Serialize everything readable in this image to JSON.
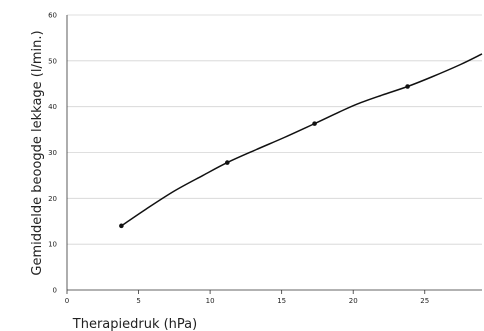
{
  "chart_data": {
    "type": "line",
    "xlabel": "Therapiedruk (hPa)",
    "ylabel": "Gemiddelde beoogde lekkage (l/min.)",
    "xlim": [
      0,
      29
    ],
    "ylim": [
      0,
      60
    ],
    "xticks": [
      0,
      5,
      10,
      15,
      20,
      25
    ],
    "yticks": [
      0,
      10,
      20,
      30,
      40,
      50,
      60
    ],
    "grid": "horizontal",
    "legend": "none",
    "series": [
      {
        "color": "#111111",
        "line": [
          {
            "x": 3.8,
            "y": 14.0
          },
          {
            "x": 5.5,
            "y": 17.6
          },
          {
            "x": 7.5,
            "y": 21.6
          },
          {
            "x": 9.5,
            "y": 25.0
          },
          {
            "x": 11.2,
            "y": 27.8
          },
          {
            "x": 13.2,
            "y": 30.6
          },
          {
            "x": 15.2,
            "y": 33.3
          },
          {
            "x": 17.3,
            "y": 36.3
          },
          {
            "x": 19.0,
            "y": 38.8
          },
          {
            "x": 20.3,
            "y": 40.6
          },
          {
            "x": 22.0,
            "y": 42.5
          },
          {
            "x": 23.8,
            "y": 44.4
          },
          {
            "x": 25.5,
            "y": 46.5
          },
          {
            "x": 27.5,
            "y": 49.2
          },
          {
            "x": 29.0,
            "y": 51.5
          }
        ],
        "markers": [
          {
            "x": 3.8,
            "y": 14.0
          },
          {
            "x": 11.2,
            "y": 27.8
          },
          {
            "x": 17.3,
            "y": 36.3
          },
          {
            "x": 23.8,
            "y": 44.4
          }
        ]
      }
    ]
  }
}
